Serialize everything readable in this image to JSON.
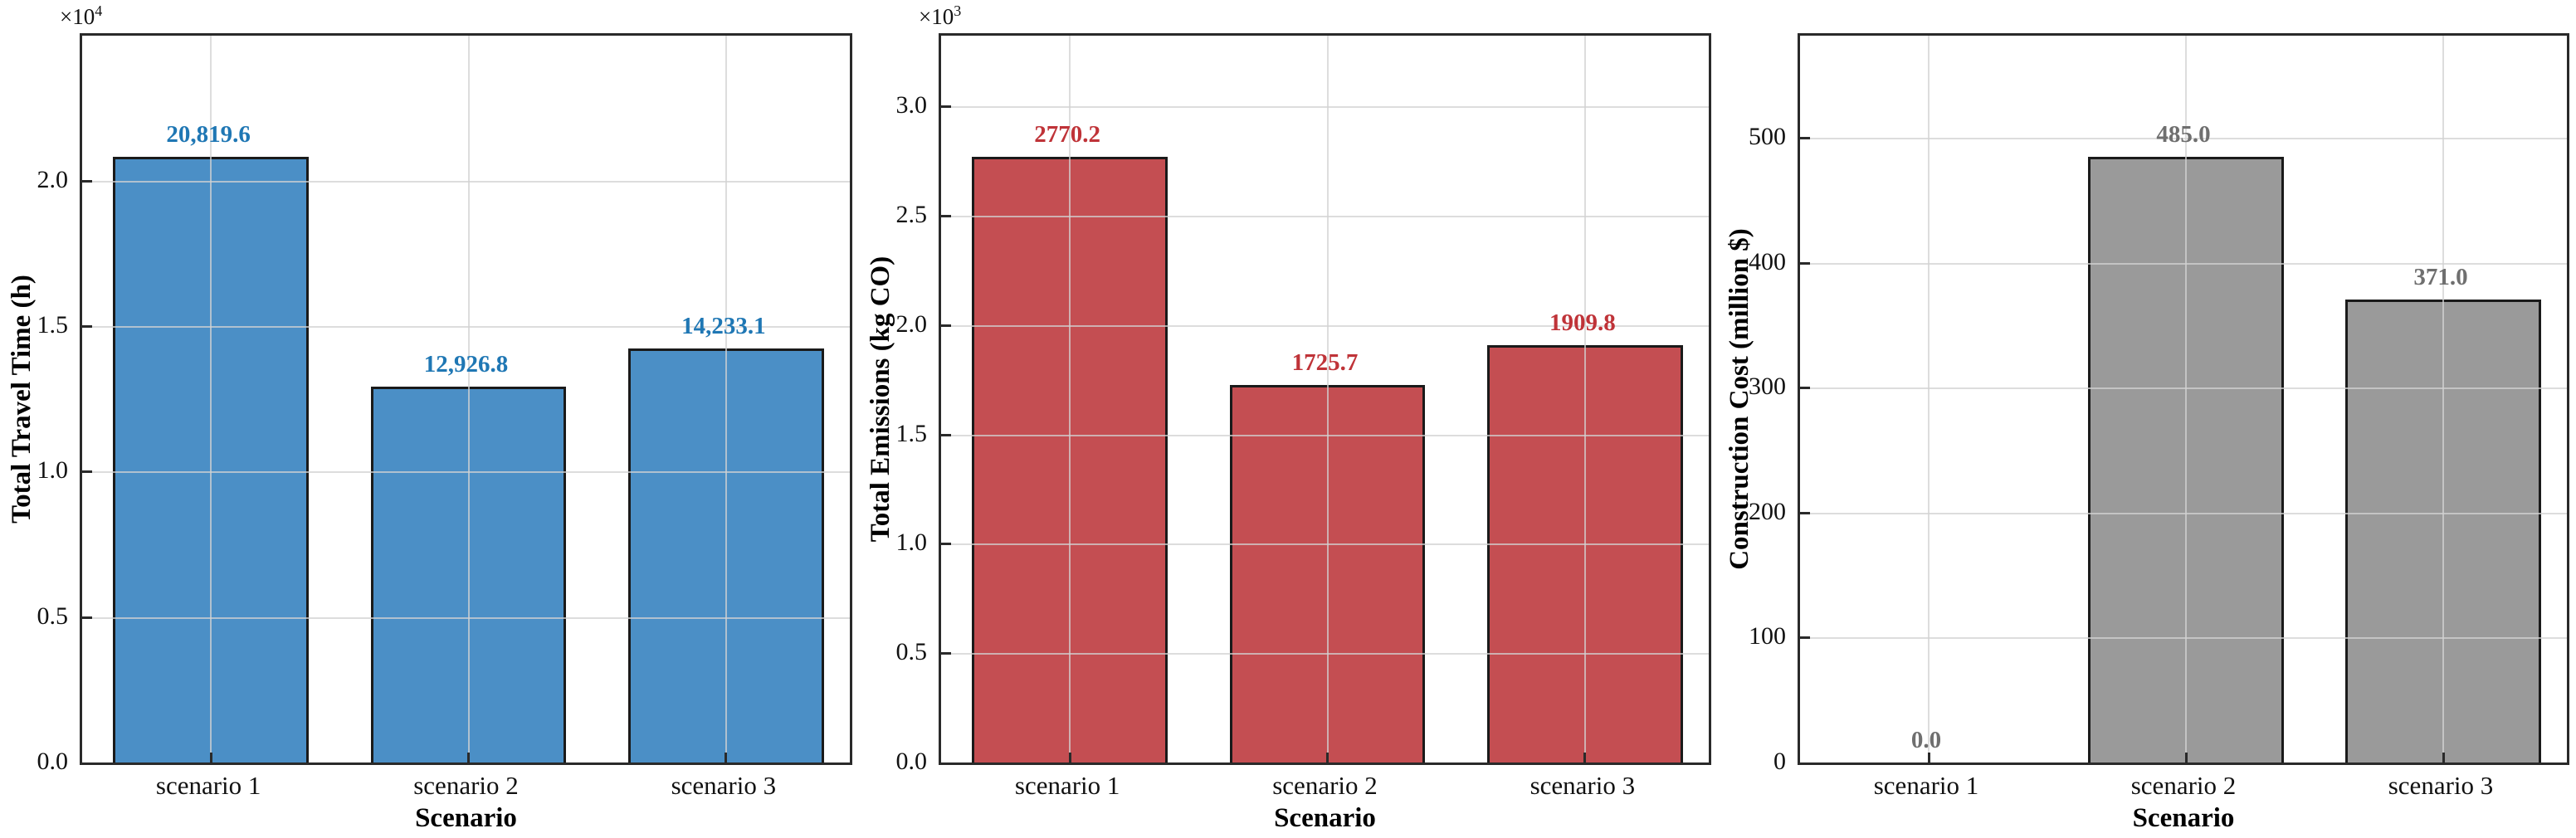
{
  "figure": {
    "background": "#ffffff",
    "xlabel_shared": "Scenario"
  },
  "chart_data": [
    {
      "type": "bar",
      "name": "total-travel-time",
      "title": "",
      "ylabel": "Total Travel Time (h)",
      "xlabel": "Scenario",
      "categories": [
        "scenario 1",
        "scenario 2",
        "scenario 3"
      ],
      "values": [
        20819.6,
        12926.8,
        14233.1
      ],
      "bar_labels": [
        "20,819.6",
        "12,926.8",
        "14,233.1"
      ],
      "yticks": [
        0,
        5000,
        10000,
        15000,
        20000
      ],
      "ytick_labels": [
        "0.0",
        "0.5",
        "1.0",
        "1.5",
        "2.0"
      ],
      "ylim": [
        0,
        24983
      ],
      "offset_text": {
        "base": "×10",
        "exp": "4"
      },
      "grid": true,
      "legend": null,
      "bar_color": "#4b8fc6",
      "bar_edge_color": "#1a1a1a",
      "label_color": "#1f77b4"
    },
    {
      "type": "bar",
      "name": "total-emissions",
      "title": "",
      "ylabel": "Total Emissions (kg CO)",
      "xlabel": "Scenario",
      "categories": [
        "scenario 1",
        "scenario 2",
        "scenario 3"
      ],
      "values": [
        2770.2,
        1725.7,
        1909.8
      ],
      "bar_labels": [
        "2770.2",
        "1725.7",
        "1909.8"
      ],
      "yticks": [
        0,
        500,
        1000,
        1500,
        2000,
        2500,
        3000
      ],
      "ytick_labels": [
        "0.0",
        "0.5",
        "1.0",
        "1.5",
        "2.0",
        "2.5",
        "3.0"
      ],
      "ylim": [
        0,
        3324
      ],
      "offset_text": {
        "base": "×10",
        "exp": "3"
      },
      "grid": true,
      "legend": null,
      "bar_color": "#c44e52",
      "bar_edge_color": "#1a1a1a",
      "label_color": "#bf3338"
    },
    {
      "type": "bar",
      "name": "construction-cost",
      "title": "",
      "ylabel": "Construction Cost (million $)",
      "xlabel": "Scenario",
      "categories": [
        "scenario 1",
        "scenario 2",
        "scenario 3"
      ],
      "values": [
        0.0,
        485.0,
        371.0
      ],
      "bar_labels": [
        "0.0",
        "485.0",
        "371.0"
      ],
      "yticks": [
        0,
        100,
        200,
        300,
        400,
        500
      ],
      "ytick_labels": [
        "0",
        "100",
        "200",
        "300",
        "400",
        "500"
      ],
      "ylim": [
        0,
        582
      ],
      "offset_text": null,
      "grid": true,
      "legend": null,
      "bar_color": "#9a9a9a",
      "bar_edge_color": "#1a1a1a",
      "label_color": "#6f6f6f"
    }
  ]
}
